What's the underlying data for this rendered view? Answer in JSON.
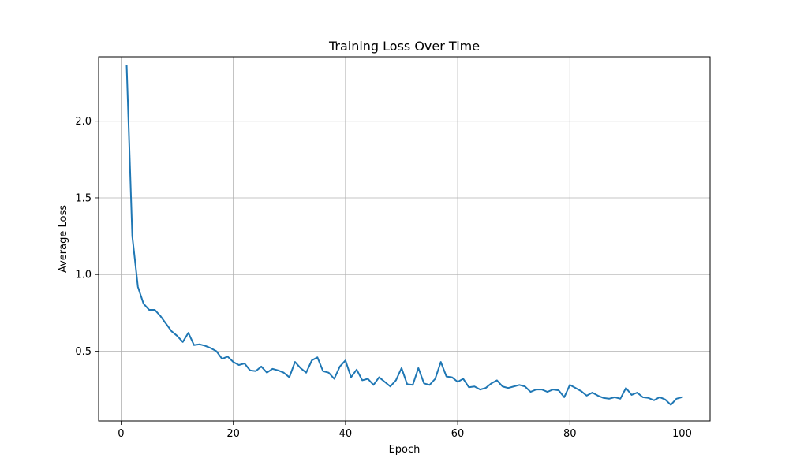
{
  "chart_data": {
    "type": "line",
    "title": "Training Loss Over Time",
    "xlabel": "Epoch",
    "ylabel": "Average Loss",
    "xlim": [
      -4,
      105
    ],
    "ylim": [
      0.045,
      2.42
    ],
    "xticks": [
      0,
      20,
      40,
      60,
      80,
      100
    ],
    "xtick_labels": [
      "0",
      "20",
      "40",
      "60",
      "80",
      "100"
    ],
    "yticks": [
      0.5,
      1.0,
      1.5,
      2.0
    ],
    "ytick_labels": [
      "0.5",
      "1.0",
      "1.5",
      "2.0"
    ],
    "grid": true,
    "line_color": "#1f77b4",
    "series": [
      {
        "x": [
          1,
          2,
          3,
          4,
          5,
          6,
          7,
          8,
          9,
          10,
          11,
          12,
          13,
          14,
          15,
          16,
          17,
          18,
          19,
          20,
          21,
          22,
          23,
          24,
          25,
          26,
          27,
          28,
          29,
          30,
          31,
          32,
          33,
          34,
          35,
          36,
          37,
          38,
          39,
          40,
          41,
          42,
          43,
          44,
          45,
          46,
          47,
          48,
          49,
          50,
          51,
          52,
          53,
          54,
          55,
          56,
          57,
          58,
          59,
          60,
          61,
          62,
          63,
          64,
          65,
          66,
          67,
          68,
          69,
          70,
          71,
          72,
          73,
          74,
          75,
          76,
          77,
          78,
          79,
          80,
          81,
          82,
          83,
          84,
          85,
          86,
          87,
          88,
          89,
          90,
          91,
          92,
          93,
          94,
          95,
          96,
          97,
          98,
          99,
          100
        ],
        "values": [
          2.36,
          1.25,
          0.92,
          0.81,
          0.77,
          0.77,
          0.73,
          0.68,
          0.63,
          0.6,
          0.56,
          0.62,
          0.54,
          0.545,
          0.535,
          0.52,
          0.5,
          0.45,
          0.465,
          0.43,
          0.41,
          0.42,
          0.375,
          0.37,
          0.4,
          0.36,
          0.385,
          0.375,
          0.36,
          0.33,
          0.43,
          0.39,
          0.36,
          0.44,
          0.46,
          0.37,
          0.36,
          0.32,
          0.4,
          0.44,
          0.33,
          0.38,
          0.31,
          0.32,
          0.28,
          0.33,
          0.3,
          0.27,
          0.31,
          0.39,
          0.285,
          0.28,
          0.39,
          0.29,
          0.28,
          0.32,
          0.43,
          0.335,
          0.33,
          0.3,
          0.32,
          0.265,
          0.27,
          0.25,
          0.26,
          0.29,
          0.31,
          0.27,
          0.26,
          0.27,
          0.28,
          0.27,
          0.235,
          0.25,
          0.25,
          0.235,
          0.25,
          0.245,
          0.2,
          0.28,
          0.26,
          0.24,
          0.21,
          0.23,
          0.21,
          0.195,
          0.19,
          0.2,
          0.19,
          0.26,
          0.215,
          0.23,
          0.2,
          0.195,
          0.18,
          0.2,
          0.185,
          0.15,
          0.19,
          0.2
        ]
      }
    ]
  }
}
